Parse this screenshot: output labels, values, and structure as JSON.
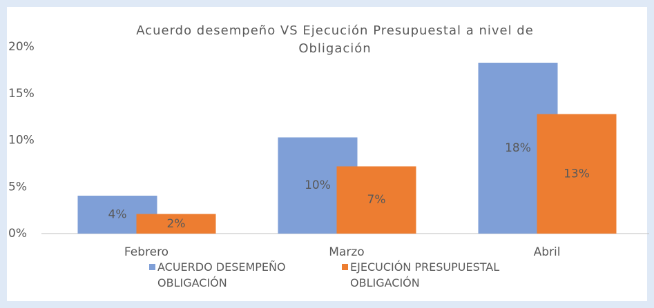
{
  "chart_data": {
    "type": "bar",
    "title": "Acuerdo desempeño VS Ejecución Presupuestal a nivel de Obligación",
    "categories": [
      "Febrero",
      "Marzo",
      "Abril"
    ],
    "series": [
      {
        "name": "ACUERDO DESEMPEÑO OBLIGACIÓN",
        "color": "#7f9fd7",
        "values": [
          4.06,
          10.3,
          18.3
        ],
        "value_labels": [
          "4%",
          "10%",
          "18%"
        ]
      },
      {
        "name": "EJECUCIÓN PRESUPUESTAL OBLIGACIÓN",
        "color": "#ed7d31",
        "values": [
          2.1,
          7.2,
          12.8
        ],
        "value_labels": [
          "2%",
          "7%",
          "13%"
        ]
      }
    ],
    "ylim": [
      0,
      20
    ],
    "yticks": [
      {
        "value": 0,
        "label": "0%"
      },
      {
        "value": 5,
        "label": "5%"
      },
      {
        "value": 10,
        "label": "10%"
      },
      {
        "value": 15,
        "label": "15%"
      },
      {
        "value": 20,
        "label": "20%"
      }
    ],
    "grid": false,
    "legend": "bottom"
  }
}
